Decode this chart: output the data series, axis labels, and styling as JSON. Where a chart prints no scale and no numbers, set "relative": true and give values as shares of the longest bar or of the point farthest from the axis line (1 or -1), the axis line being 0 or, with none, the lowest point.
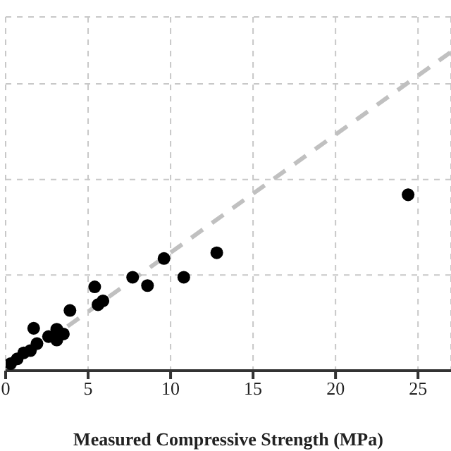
{
  "chart_data": {
    "type": "scatter",
    "xlabel": "Measured Compressive Strength (MPa)",
    "relative": true,
    "xlim": [
      0,
      27
    ],
    "xticks": [
      0,
      5,
      10,
      15,
      20,
      25
    ],
    "grid": true,
    "marker": "circle",
    "series": [
      {
        "color": "#000000",
        "x": [
          24.4,
          12.8,
          9.6,
          10.8,
          7.7,
          8.6,
          5.4,
          5.9,
          5.6,
          3.9,
          1.7,
          3.1,
          3.5,
          3.1,
          2.6,
          1.9,
          1.5,
          1.1,
          0.7,
          0.3
        ],
        "values": [
          0.552,
          0.37,
          0.352,
          0.293,
          0.293,
          0.267,
          0.263,
          0.219,
          0.207,
          0.189,
          0.133,
          0.13,
          0.115,
          0.096,
          0.107,
          0.085,
          0.063,
          0.056,
          0.037,
          0.022
        ]
      },
      {
        "type": "line",
        "color": "#c0c0c0",
        "line_style": "dashed",
        "marker": "none",
        "x": [
          0,
          27
        ],
        "values": [
          0,
          1
        ]
      }
    ]
  }
}
